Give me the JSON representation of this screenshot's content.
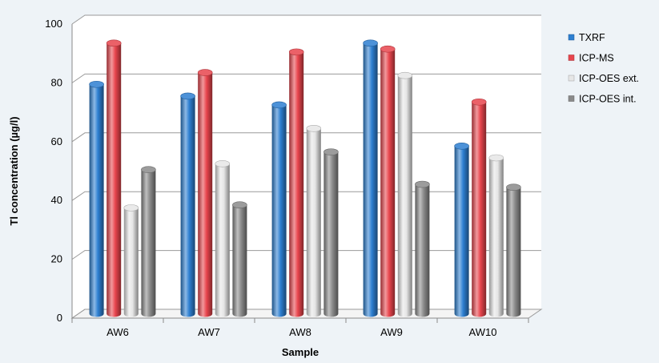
{
  "chart_data": {
    "type": "bar",
    "title": "",
    "xlabel": "Sample",
    "ylabel": "Tl concentration (µg/l)",
    "categories": [
      "AW6",
      "AW7",
      "AW8",
      "AW9",
      "AW10"
    ],
    "series": [
      {
        "name": "TXRF",
        "values": [
          78,
          74,
          71,
          92,
          57
        ],
        "color": "#2d7fd1"
      },
      {
        "name": "ICP-MS",
        "values": [
          92,
          82,
          89,
          90,
          72
        ],
        "color": "#e8454d"
      },
      {
        "name": "ICP-OES ext.",
        "values": [
          36,
          51,
          63,
          81,
          53
        ],
        "color": "#e6e6e6"
      },
      {
        "name": "ICP-OES int.",
        "values": [
          49,
          37,
          55,
          44,
          43
        ],
        "color": "#8a8a8a"
      }
    ],
    "ylim": [
      0,
      100
    ],
    "yticks": [
      0,
      20,
      40,
      60,
      80,
      100
    ],
    "grid": true,
    "legend_position": "right",
    "three_d": true
  }
}
